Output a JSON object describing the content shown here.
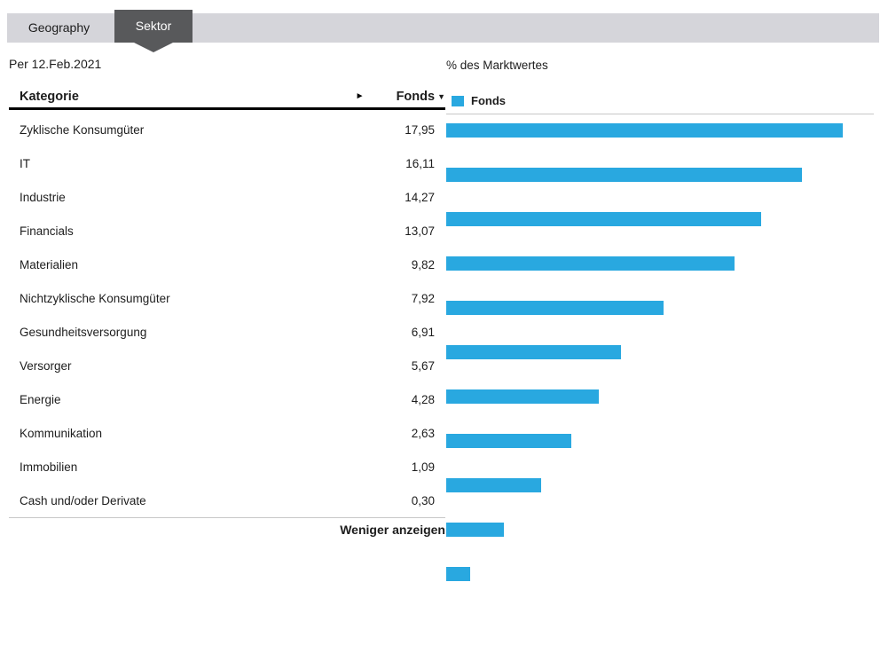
{
  "tabs": [
    {
      "label": "Geography",
      "active": false
    },
    {
      "label": "Sektor",
      "active": true
    }
  ],
  "as_of_date": "Per 12.Feb.2021",
  "table": {
    "category_header": "Kategorie",
    "value_header": "Fonds",
    "sort_desc_icon": "▼",
    "scroll_right_icon": "►",
    "show_less_label": "Weniger anzeigen"
  },
  "chart": {
    "title": "% des Marktwertes",
    "legend_label": "Fonds"
  },
  "colors": {
    "bar_blue": "#29A8E0",
    "active_tab_gray": "#58595B",
    "tab_strip_gray": "#D5D5DA",
    "divider_gray": "#C8C8C8"
  },
  "chart_data": {
    "type": "bar",
    "orientation": "horizontal",
    "title": "% des Marktwertes",
    "legend": [
      "Fonds"
    ],
    "legend_position": "top-left",
    "grid": false,
    "xlim": [
      0,
      20
    ],
    "categories": [
      "Zyklische Konsumgüter",
      "IT",
      "Industrie",
      "Financials",
      "Materialien",
      "Nichtzyklische Konsumgüter",
      "Gesundheitsversorgung",
      "Versorger",
      "Energie",
      "Kommunikation",
      "Immobilien",
      "Cash und/oder Derivate"
    ],
    "values": [
      17.95,
      16.11,
      14.27,
      13.07,
      9.82,
      7.92,
      6.91,
      5.67,
      4.28,
      2.63,
      1.09,
      0.3
    ],
    "value_labels": [
      "17,95",
      "16,11",
      "14,27",
      "13,07",
      "9,82",
      "7,92",
      "6,91",
      "5,67",
      "4,28",
      "2,63",
      "1,09",
      "0,30"
    ],
    "min_visible_bar_value": 0.4
  }
}
